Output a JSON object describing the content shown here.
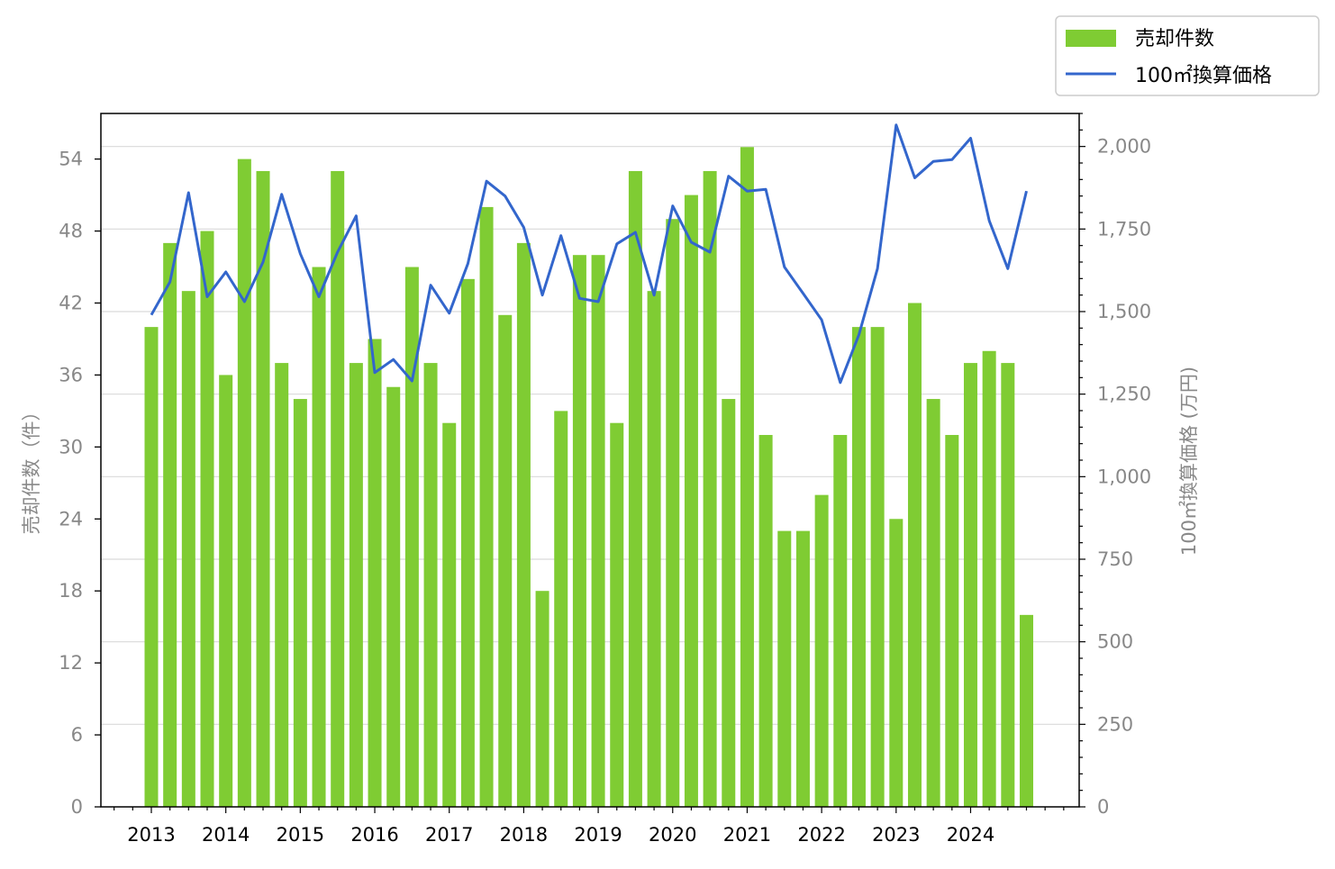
{
  "chart_data": {
    "type": "bar",
    "title": "",
    "xlabel": "",
    "ylabel": "売却件数（件）",
    "y2label": "100㎡換算価格 (万円)",
    "ylim": [
      0,
      57.8
    ],
    "y2lim": [
      0,
      2100
    ],
    "yticks": [
      0,
      6,
      12,
      18,
      24,
      30,
      36,
      42,
      48,
      54
    ],
    "y2ticks": [
      0,
      250,
      500,
      750,
      1000,
      1250,
      1500,
      1750,
      2000
    ],
    "y2tick_labels": [
      "0",
      "250",
      "500",
      "750",
      "1,000",
      "1,250",
      "1,500",
      "1,750",
      "2,000"
    ],
    "xtick_labels": [
      "2013",
      "2014",
      "2015",
      "2016",
      "2017",
      "2018",
      "2019",
      "2020",
      "2021",
      "2022",
      "2023",
      "2024"
    ],
    "grid": "horizontal-right-axis",
    "legend_position": "top-right-outside",
    "bar_color": "#7fcc33",
    "line_color": "#3366cc",
    "series": [
      {
        "name": "売却件数",
        "type": "bar",
        "values": [
          40,
          47,
          43,
          48,
          36,
          54,
          53,
          37,
          34,
          45,
          53,
          37,
          39,
          35,
          45,
          37,
          32,
          44,
          50,
          41,
          47,
          18,
          33,
          46,
          46,
          32,
          53,
          43,
          49,
          51,
          53,
          34,
          55,
          31,
          23,
          23,
          26,
          31,
          40,
          40,
          24,
          42,
          34,
          31,
          37,
          38,
          37,
          16
        ]
      },
      {
        "name": "100㎡換算価格",
        "type": "line",
        "axis": "right",
        "values": [
          1490,
          1590,
          1860,
          1545,
          1620,
          1530,
          1650,
          1855,
          1675,
          1545,
          1680,
          1790,
          1315,
          1355,
          1290,
          1580,
          1495,
          1645,
          1895,
          1850,
          1755,
          1550,
          1730,
          1540,
          1530,
          1705,
          1740,
          1550,
          1820,
          1710,
          1680,
          1910,
          1865,
          1870,
          1635,
          1555,
          1475,
          1285,
          1430,
          1630,
          2065,
          1905,
          1955,
          1960,
          2025,
          1775,
          1630,
          1865
        ]
      }
    ]
  }
}
